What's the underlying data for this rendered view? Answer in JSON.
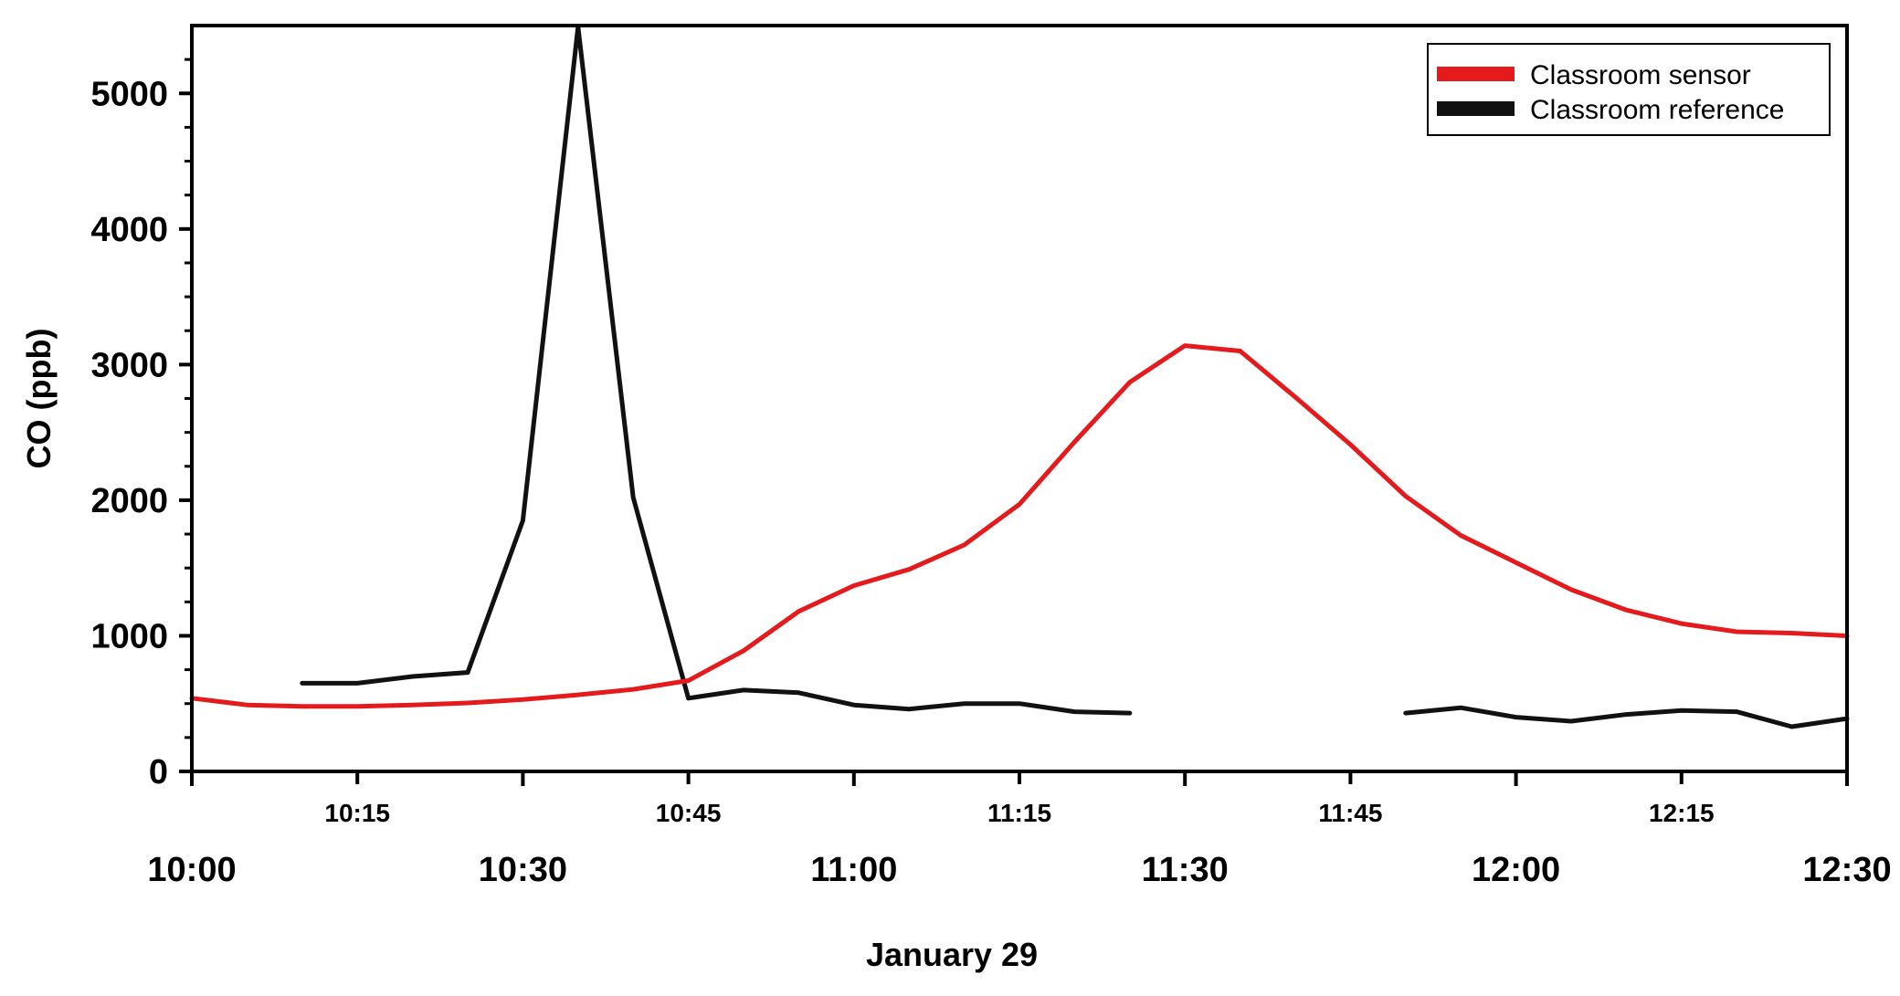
{
  "chart_data": {
    "type": "line",
    "xlabel": "January 29",
    "ylabel": "CO (ppb)",
    "x_unit": "time of day (HH:MM)",
    "xlim": [
      "10:00",
      "12:30"
    ],
    "ylim": [
      0,
      5500
    ],
    "y_ticks": [
      "0",
      "1000",
      "2000",
      "3000",
      "4000",
      "5000"
    ],
    "x_major_ticks": [
      "10:00",
      "10:30",
      "11:00",
      "11:30",
      "12:00",
      "12:30"
    ],
    "x_minor_ticks": [
      "10:15",
      "10:45",
      "11:15",
      "11:45",
      "12:15"
    ],
    "grid": false,
    "legend_position": "top-right",
    "series": [
      {
        "name": "Classroom sensor",
        "color": "#e41a1c",
        "points": [
          [
            "10:00",
            540
          ],
          [
            "10:05",
            490
          ],
          [
            "10:10",
            480
          ],
          [
            "10:15",
            480
          ],
          [
            "10:20",
            490
          ],
          [
            "10:25",
            505
          ],
          [
            "10:30",
            530
          ],
          [
            "10:35",
            565
          ],
          [
            "10:40",
            605
          ],
          [
            "10:45",
            670
          ],
          [
            "10:50",
            890
          ],
          [
            "10:55",
            1180
          ],
          [
            "11:00",
            1370
          ],
          [
            "11:05",
            1490
          ],
          [
            "11:10",
            1670
          ],
          [
            "11:15",
            1970
          ],
          [
            "11:20",
            2430
          ],
          [
            "11:25",
            2870
          ],
          [
            "11:30",
            3140
          ],
          [
            "11:35",
            3100
          ],
          [
            "11:40",
            2760
          ],
          [
            "11:45",
            2410
          ],
          [
            "11:50",
            2030
          ],
          [
            "11:55",
            1740
          ],
          [
            "12:00",
            1540
          ],
          [
            "12:05",
            1340
          ],
          [
            "12:10",
            1190
          ],
          [
            "12:15",
            1090
          ],
          [
            "12:20",
            1030
          ],
          [
            "12:25",
            1020
          ],
          [
            "12:30",
            1000
          ]
        ]
      },
      {
        "name": "Classroom reference",
        "color": "#111111",
        "points": [
          [
            "10:10",
            650
          ],
          [
            "10:15",
            650
          ],
          [
            "10:20",
            700
          ],
          [
            "10:25",
            730
          ],
          [
            "10:30",
            1850
          ],
          [
            "10:35",
            5490
          ],
          [
            "10:40",
            2020
          ],
          [
            "10:45",
            540
          ],
          [
            "10:50",
            600
          ],
          [
            "10:55",
            580
          ],
          [
            "11:00",
            490
          ],
          [
            "11:05",
            460
          ],
          [
            "11:10",
            500
          ],
          [
            "11:15",
            500
          ],
          [
            "11:20",
            440
          ],
          [
            "11:25",
            430
          ],
          null,
          [
            "11:50",
            430
          ],
          [
            "11:55",
            470
          ],
          [
            "12:00",
            400
          ],
          [
            "12:05",
            370
          ],
          [
            "12:10",
            420
          ],
          [
            "12:15",
            450
          ],
          [
            "12:20",
            440
          ],
          [
            "12:25",
            330
          ],
          [
            "12:30",
            390
          ]
        ]
      }
    ]
  }
}
